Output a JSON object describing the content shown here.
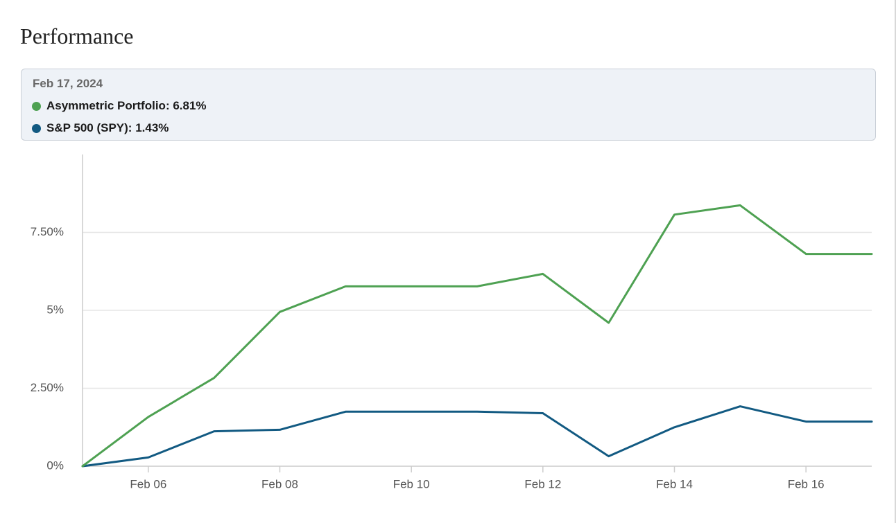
{
  "page": {
    "title": "Performance"
  },
  "tooltip": {
    "date": "Feb 17, 2024",
    "rows": [
      {
        "name": "Asymmetric Portfolio",
        "value_label": "6.81%",
        "color": "#4ea152"
      },
      {
        "name": "S&P 500 (SPY)",
        "value_label": "1.43%",
        "color": "#125a82"
      }
    ]
  },
  "chart_data": {
    "type": "line",
    "x": [
      "2024-02-05",
      "2024-02-06",
      "2024-02-07",
      "2024-02-08",
      "2024-02-09",
      "2024-02-10",
      "2024-02-11",
      "2024-02-12",
      "2024-02-13",
      "2024-02-14",
      "2024-02-15",
      "2024-02-16",
      "2024-02-17"
    ],
    "series": [
      {
        "name": "Asymmetric Portfolio",
        "color": "#4ea152",
        "values": [
          0,
          1.58,
          2.83,
          4.95,
          5.77,
          5.77,
          5.77,
          6.17,
          4.6,
          8.07,
          8.37,
          6.81,
          6.81
        ]
      },
      {
        "name": "S&P 500 (SPY)",
        "color": "#125a82",
        "values": [
          0,
          0.28,
          1.12,
          1.17,
          1.75,
          1.75,
          1.75,
          1.7,
          0.32,
          1.25,
          1.92,
          1.43,
          1.43
        ]
      }
    ],
    "yticks": [
      {
        "value": 0,
        "label": "0%"
      },
      {
        "value": 2.5,
        "label": "2.50%"
      },
      {
        "value": 5,
        "label": "5%"
      },
      {
        "value": 7.5,
        "label": "7.50%"
      }
    ],
    "xticks": [
      {
        "value": "2024-02-06",
        "label": "Feb 06"
      },
      {
        "value": "2024-02-08",
        "label": "Feb 08"
      },
      {
        "value": "2024-02-10",
        "label": "Feb 10"
      },
      {
        "value": "2024-02-12",
        "label": "Feb 12"
      },
      {
        "value": "2024-02-14",
        "label": "Feb 14"
      },
      {
        "value": "2024-02-16",
        "label": "Feb 16"
      }
    ],
    "ylim": [
      0,
      10
    ],
    "xlim": [
      "2024-02-05",
      "2024-02-17"
    ],
    "grid": true,
    "axis_color": "#cccccc",
    "grid_color": "#e6e6e6"
  }
}
